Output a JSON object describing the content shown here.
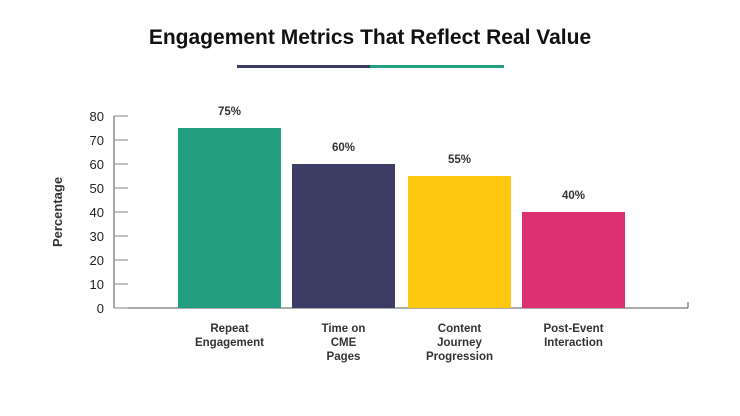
{
  "chart_data": {
    "type": "bar",
    "title": "Engagement Metrics That Reflect Real Value",
    "xlabel": "",
    "ylabel": "Percentage",
    "ylim": [
      0,
      80
    ],
    "yticks": [
      0,
      10,
      20,
      30,
      40,
      50,
      60,
      70,
      80
    ],
    "grid": false,
    "categories": [
      [
        "Repeat",
        "Engagement"
      ],
      [
        "Time on",
        "CME",
        "Pages"
      ],
      [
        "Content",
        "Journey",
        "Progression"
      ],
      [
        "Post-Event",
        "Interaction"
      ]
    ],
    "values": [
      75,
      60,
      55,
      40
    ],
    "data_labels": [
      "75%",
      "60%",
      "55%",
      "40%"
    ],
    "colors": [
      "#249e80",
      "#3d3c64",
      "#fdc80f",
      "#dc3170"
    ],
    "title_underline_colors": [
      "#3d3c64",
      "#249e80"
    ]
  }
}
